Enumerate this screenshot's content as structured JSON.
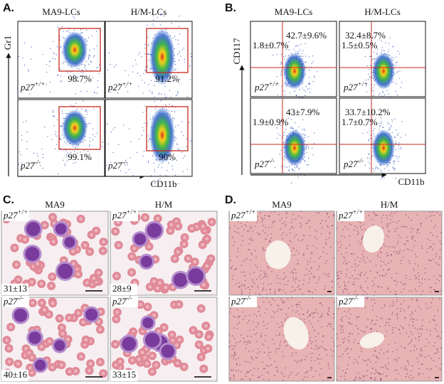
{
  "panel_a": {
    "label": "A.",
    "columns": [
      "MA9-LCs",
      "H/M-LCs"
    ],
    "y_axis": "Gr1",
    "x_axis": "CD11b",
    "plots": [
      {
        "genotype": {
          "base": "p27",
          "sup": "+/+"
        },
        "percent": "98.7%"
      },
      {
        "genotype": {
          "base": "p27",
          "sup": "+/+"
        },
        "percent": "91.2%"
      },
      {
        "genotype": {
          "base": "p27",
          "sup": "-/-"
        },
        "percent": "99.1%"
      },
      {
        "genotype": {
          "base": "p27",
          "sup": "-/-"
        },
        "percent": "90%"
      }
    ]
  },
  "panel_b": {
    "label": "B.",
    "columns": [
      "MA9-LCs",
      "H/M-LCs"
    ],
    "y_axis": "CD117",
    "x_axis": "CD11b",
    "plots": [
      {
        "genotype": {
          "base": "p27",
          "sup": "+/+"
        },
        "left": "1.8±0.7%",
        "right": "42.7±9.6%"
      },
      {
        "genotype": {
          "base": "p27",
          "sup": "+/+"
        },
        "left": "1.5±0.5%",
        "right": "32.4±8.7%"
      },
      {
        "genotype": {
          "base": "p27",
          "sup": "-/-"
        },
        "left": "1.9±0.9%",
        "right": "43±7.9%"
      },
      {
        "genotype": {
          "base": "p27",
          "sup": "-/-"
        },
        "left": "1.7±0.7%",
        "right": "33.7±10.2%"
      }
    ]
  },
  "panel_c": {
    "label": "C.",
    "columns": [
      "MA9",
      "H/M"
    ],
    "images": [
      {
        "genotype": {
          "base": "p27",
          "sup": "+/+"
        },
        "count": "31±13"
      },
      {
        "genotype": {
          "base": "p27",
          "sup": "+/+"
        },
        "count": "28±9"
      },
      {
        "genotype": {
          "base": "p27",
          "sup": "-/-"
        },
        "count": "40±16"
      },
      {
        "genotype": {
          "base": "p27",
          "sup": "-/-"
        },
        "count": "33±15"
      }
    ]
  },
  "panel_d": {
    "label": "D.",
    "columns": [
      "MA9",
      "H/M"
    ],
    "images": [
      {
        "genotype": {
          "base": "p27",
          "sup": "+/+"
        }
      },
      {
        "genotype": {
          "base": "p27",
          "sup": "+/+"
        }
      },
      {
        "genotype": {
          "base": "p27",
          "sup": "-/-"
        }
      },
      {
        "genotype": {
          "base": "p27",
          "sup": "-/-"
        }
      }
    ]
  }
}
